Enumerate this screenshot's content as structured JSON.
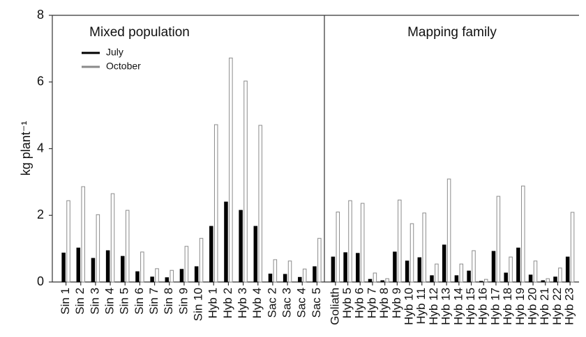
{
  "chart_data": [
    {
      "type": "bar",
      "title": "Mixed population",
      "ylabel": "kg plant⁻¹",
      "categories": [
        "Sin 1",
        "Sin 2",
        "Sin 3",
        "Sin 4",
        "Sin 5",
        "Sin 6",
        "Sin 7",
        "Sin 8",
        "Sin 9",
        "Sin 10",
        "Hyb 1",
        "Hyb 2",
        "Hyb 3",
        "Hyb 4",
        "Sac 2",
        "Sac 3",
        "Sac 4",
        "Sac 5"
      ],
      "series": [
        {
          "name": "July",
          "color": "#000000",
          "fill": "#000000",
          "values": [
            0.87,
            1.02,
            0.71,
            0.94,
            0.77,
            0.31,
            0.15,
            0.13,
            0.38,
            0.46,
            1.67,
            2.4,
            2.15,
            1.67,
            0.24,
            0.23,
            0.14,
            0.46
          ]
        },
        {
          "name": "October",
          "color": "#8a8a8a",
          "fill": "#ffffff",
          "values": [
            2.44,
            2.86,
            2.02,
            2.65,
            2.15,
            0.9,
            0.4,
            0.35,
            1.07,
            1.31,
            4.72,
            6.72,
            6.03,
            4.7,
            0.67,
            0.63,
            0.39,
            1.31
          ]
        }
      ],
      "ylim": [
        0,
        8
      ],
      "yticks": [
        0,
        2,
        4,
        6,
        8
      ]
    },
    {
      "type": "bar",
      "title": "Mapping family",
      "categories": [
        "Goliath",
        "Hyb 5",
        "Hyb 6",
        "Hyb 7",
        "Hyb 8",
        "Hyb 9",
        "Hyb 10",
        "Hyb 11",
        "Hyb 12",
        "Hyb 13",
        "Hyb 14",
        "Hyb 15",
        "Hyb 16",
        "Hyb 17",
        "Hyb 18",
        "Hyb 19",
        "Hyb 20",
        "Hyb 21",
        "Hyb 22",
        "Hyb 23"
      ],
      "series": [
        {
          "color": "#000000",
          "fill": "#000000",
          "values": [
            0.75,
            0.88,
            0.86,
            0.08,
            0.04,
            0.9,
            0.63,
            0.73,
            0.19,
            1.11,
            0.19,
            0.33,
            0.02,
            0.92,
            0.27,
            1.02,
            0.21,
            0.04,
            0.15,
            0.75
          ]
        },
        {
          "color": "#8a8a8a",
          "fill": "#ffffff",
          "values": [
            2.1,
            2.44,
            2.36,
            0.27,
            0.1,
            2.46,
            1.75,
            2.07,
            0.54,
            3.09,
            0.54,
            0.94,
            0.08,
            2.57,
            0.75,
            2.88,
            0.63,
            0.1,
            0.42,
            2.09
          ]
        }
      ],
      "ylim": [
        0,
        8
      ]
    }
  ]
}
